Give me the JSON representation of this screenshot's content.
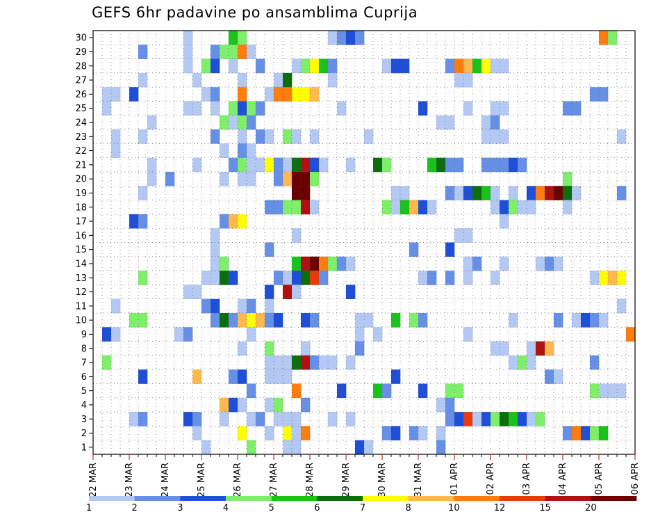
{
  "chart_data": {
    "type": "heatmap",
    "title": "GEFS 6hr padavine po ansamblima Cuprija",
    "y_labels": [
      "1",
      "2",
      "3",
      "4",
      "5",
      "6",
      "7",
      "8",
      "9",
      "10",
      "11",
      "12",
      "13",
      "14",
      "15",
      "16",
      "17",
      "18",
      "19",
      "20",
      "21",
      "22",
      "23",
      "24",
      "25",
      "26",
      "27",
      "28",
      "29",
      "30"
    ],
    "x_labels": [
      "22 MAR",
      "23 MAR",
      "24 MAR",
      "25 MAR",
      "26 MAR",
      "27 MAR",
      "28 MAR",
      "29 MAR",
      "30 MAR",
      "31 MAR",
      "01 APR",
      "02 APR",
      "03 APR",
      "04 APR",
      "05 APR",
      "06 APR"
    ],
    "time_steps": 60,
    "steps_per_day": 4,
    "legend_levels": [
      "1",
      "2",
      "3",
      "4",
      "5",
      "6",
      "7",
      "8",
      "10",
      "12",
      "15",
      "20"
    ],
    "colors": [
      "#b3c8f2",
      "#6590e6",
      "#1f4fd6",
      "#7fee6a",
      "#1cc21c",
      "#0d6e0d",
      "#ffff00",
      "#ffb84d",
      "#ff7c0f",
      "#e53b0e",
      "#b01010",
      "#6a0000"
    ],
    "cells": [
      [
        30,
        11,
        1
      ],
      [
        30,
        16,
        5
      ],
      [
        30,
        17,
        4
      ],
      [
        30,
        27,
        1
      ],
      [
        30,
        28,
        2
      ],
      [
        30,
        29,
        3
      ],
      [
        30,
        30,
        2
      ],
      [
        30,
        57,
        9
      ],
      [
        30,
        58,
        4
      ],
      [
        29,
        11,
        1
      ],
      [
        29,
        14,
        2
      ],
      [
        29,
        15,
        4
      ],
      [
        29,
        16,
        4
      ],
      [
        29,
        17,
        9
      ],
      [
        29,
        18,
        1
      ],
      [
        29,
        6,
        2
      ],
      [
        28,
        11,
        1
      ],
      [
        28,
        13,
        4
      ],
      [
        28,
        14,
        3
      ],
      [
        28,
        16,
        1
      ],
      [
        28,
        19,
        2
      ],
      [
        28,
        23,
        1
      ],
      [
        28,
        24,
        4
      ],
      [
        28,
        25,
        7
      ],
      [
        28,
        26,
        5
      ],
      [
        28,
        27,
        2
      ],
      [
        28,
        33,
        1
      ],
      [
        28,
        34,
        3
      ],
      [
        28,
        35,
        3
      ],
      [
        28,
        40,
        2
      ],
      [
        28,
        41,
        9
      ],
      [
        28,
        42,
        8
      ],
      [
        28,
        43,
        5
      ],
      [
        28,
        44,
        7
      ],
      [
        28,
        45,
        1
      ],
      [
        28,
        46,
        1
      ],
      [
        27,
        6,
        1
      ],
      [
        27,
        12,
        1
      ],
      [
        27,
        17,
        1
      ],
      [
        27,
        21,
        1
      ],
      [
        27,
        22,
        6
      ],
      [
        27,
        27,
        1
      ],
      [
        27,
        41,
        1
      ],
      [
        27,
        42,
        1
      ],
      [
        26,
        2,
        1
      ],
      [
        26,
        3,
        1
      ],
      [
        26,
        5,
        3
      ],
      [
        26,
        13,
        1
      ],
      [
        26,
        14,
        2
      ],
      [
        26,
        17,
        9
      ],
      [
        26,
        20,
        1
      ],
      [
        26,
        21,
        9
      ],
      [
        26,
        22,
        9
      ],
      [
        26,
        23,
        7
      ],
      [
        26,
        24,
        7
      ],
      [
        26,
        25,
        8
      ],
      [
        26,
        56,
        2
      ],
      [
        26,
        57,
        2
      ],
      [
        25,
        2,
        1
      ],
      [
        25,
        11,
        1
      ],
      [
        25,
        12,
        1
      ],
      [
        25,
        14,
        1
      ],
      [
        25,
        16,
        4
      ],
      [
        25,
        17,
        3
      ],
      [
        25,
        18,
        4
      ],
      [
        25,
        19,
        2
      ],
      [
        25,
        28,
        1
      ],
      [
        25,
        37,
        3
      ],
      [
        25,
        42,
        1
      ],
      [
        25,
        45,
        1
      ],
      [
        25,
        46,
        1
      ],
      [
        25,
        53,
        2
      ],
      [
        25,
        54,
        2
      ],
      [
        24,
        7,
        1
      ],
      [
        24,
        15,
        4
      ],
      [
        24,
        16,
        1
      ],
      [
        24,
        17,
        4
      ],
      [
        24,
        18,
        2
      ],
      [
        24,
        39,
        1
      ],
      [
        24,
        40,
        1
      ],
      [
        24,
        44,
        1
      ],
      [
        24,
        45,
        2
      ],
      [
        23,
        3,
        1
      ],
      [
        23,
        6,
        1
      ],
      [
        23,
        14,
        2
      ],
      [
        23,
        17,
        1
      ],
      [
        23,
        19,
        2
      ],
      [
        23,
        20,
        1
      ],
      [
        23,
        22,
        4
      ],
      [
        23,
        23,
        1
      ],
      [
        23,
        25,
        1
      ],
      [
        23,
        31,
        1
      ],
      [
        23,
        44,
        1
      ],
      [
        23,
        45,
        1
      ],
      [
        23,
        46,
        1
      ],
      [
        23,
        59,
        1
      ],
      [
        22,
        3,
        1
      ],
      [
        22,
        15,
        1
      ],
      [
        22,
        17,
        2
      ],
      [
        22,
        18,
        1
      ],
      [
        21,
        7,
        1
      ],
      [
        21,
        12,
        1
      ],
      [
        21,
        16,
        2
      ],
      [
        21,
        17,
        4
      ],
      [
        21,
        18,
        1
      ],
      [
        21,
        19,
        1
      ],
      [
        21,
        20,
        7
      ],
      [
        21,
        21,
        2
      ],
      [
        21,
        22,
        1
      ],
      [
        21,
        23,
        6
      ],
      [
        21,
        24,
        11
      ],
      [
        21,
        25,
        3
      ],
      [
        21,
        26,
        1
      ],
      [
        21,
        29,
        1
      ],
      [
        21,
        32,
        6
      ],
      [
        21,
        33,
        4
      ],
      [
        21,
        38,
        5
      ],
      [
        21,
        39,
        6
      ],
      [
        21,
        40,
        2
      ],
      [
        21,
        41,
        2
      ],
      [
        21,
        44,
        2
      ],
      [
        21,
        45,
        2
      ],
      [
        21,
        46,
        2
      ],
      [
        21,
        47,
        3
      ],
      [
        21,
        48,
        2
      ],
      [
        20,
        7,
        1
      ],
      [
        20,
        9,
        2
      ],
      [
        20,
        15,
        1
      ],
      [
        20,
        17,
        1
      ],
      [
        20,
        18,
        1
      ],
      [
        20,
        21,
        2
      ],
      [
        20,
        22,
        8
      ],
      [
        20,
        23,
        12
      ],
      [
        20,
        24,
        12
      ],
      [
        20,
        25,
        4
      ],
      [
        20,
        53,
        4
      ],
      [
        19,
        6,
        1
      ],
      [
        19,
        23,
        12
      ],
      [
        19,
        24,
        12
      ],
      [
        19,
        34,
        1
      ],
      [
        19,
        35,
        1
      ],
      [
        19,
        40,
        2
      ],
      [
        19,
        41,
        1
      ],
      [
        19,
        42,
        3
      ],
      [
        19,
        43,
        6
      ],
      [
        19,
        44,
        5
      ],
      [
        19,
        45,
        1
      ],
      [
        19,
        47,
        1
      ],
      [
        19,
        49,
        3
      ],
      [
        19,
        50,
        9
      ],
      [
        19,
        51,
        11
      ],
      [
        19,
        52,
        12
      ],
      [
        19,
        53,
        6
      ],
      [
        19,
        54,
        1
      ],
      [
        19,
        59,
        2
      ],
      [
        18,
        20,
        2
      ],
      [
        18,
        21,
        2
      ],
      [
        18,
        22,
        4
      ],
      [
        18,
        23,
        4
      ],
      [
        18,
        24,
        11
      ],
      [
        18,
        25,
        1
      ],
      [
        18,
        33,
        4
      ],
      [
        18,
        34,
        1
      ],
      [
        18,
        35,
        5
      ],
      [
        18,
        36,
        8
      ],
      [
        18,
        37,
        3
      ],
      [
        18,
        38,
        1
      ],
      [
        18,
        45,
        1
      ],
      [
        18,
        46,
        3
      ],
      [
        18,
        47,
        4
      ],
      [
        18,
        48,
        1
      ],
      [
        18,
        49,
        1
      ],
      [
        18,
        53,
        1
      ],
      [
        17,
        5,
        3
      ],
      [
        17,
        6,
        2
      ],
      [
        17,
        15,
        2
      ],
      [
        17,
        16,
        8
      ],
      [
        17,
        17,
        7
      ],
      [
        17,
        46,
        1
      ],
      [
        16,
        14,
        1
      ],
      [
        16,
        23,
        1
      ],
      [
        16,
        41,
        1
      ],
      [
        16,
        42,
        1
      ],
      [
        15,
        14,
        1
      ],
      [
        15,
        20,
        2
      ],
      [
        15,
        36,
        2
      ],
      [
        15,
        40,
        3
      ],
      [
        14,
        14,
        1
      ],
      [
        14,
        15,
        4
      ],
      [
        14,
        23,
        5
      ],
      [
        14,
        24,
        11
      ],
      [
        14,
        25,
        12
      ],
      [
        14,
        26,
        9
      ],
      [
        14,
        27,
        4
      ],
      [
        14,
        28,
        2
      ],
      [
        14,
        29,
        1
      ],
      [
        14,
        42,
        1
      ],
      [
        14,
        43,
        2
      ],
      [
        14,
        46,
        1
      ],
      [
        14,
        50,
        1
      ],
      [
        14,
        51,
        2
      ],
      [
        14,
        52,
        1
      ],
      [
        13,
        6,
        4
      ],
      [
        13,
        13,
        1
      ],
      [
        13,
        14,
        1
      ],
      [
        13,
        15,
        6
      ],
      [
        13,
        16,
        3
      ],
      [
        13,
        21,
        2
      ],
      [
        13,
        22,
        1
      ],
      [
        13,
        23,
        3
      ],
      [
        13,
        24,
        6
      ],
      [
        13,
        25,
        10
      ],
      [
        13,
        26,
        2
      ],
      [
        13,
        37,
        1
      ],
      [
        13,
        38,
        2
      ],
      [
        13,
        40,
        2
      ],
      [
        13,
        42,
        1
      ],
      [
        13,
        45,
        1
      ],
      [
        13,
        56,
        1
      ],
      [
        13,
        57,
        7
      ],
      [
        13,
        58,
        8
      ],
      [
        13,
        59,
        7
      ],
      [
        12,
        11,
        1
      ],
      [
        12,
        12,
        1
      ],
      [
        12,
        20,
        3
      ],
      [
        12,
        22,
        11
      ],
      [
        12,
        23,
        1
      ],
      [
        12,
        29,
        3
      ],
      [
        11,
        3,
        1
      ],
      [
        11,
        13,
        2
      ],
      [
        11,
        14,
        3
      ],
      [
        11,
        17,
        1
      ],
      [
        11,
        18,
        2
      ],
      [
        11,
        20,
        1
      ],
      [
        11,
        59,
        1
      ],
      [
        10,
        5,
        4
      ],
      [
        10,
        6,
        4
      ],
      [
        10,
        14,
        2
      ],
      [
        10,
        15,
        6
      ],
      [
        10,
        16,
        2
      ],
      [
        10,
        17,
        8
      ],
      [
        10,
        18,
        7
      ],
      [
        10,
        19,
        8
      ],
      [
        10,
        20,
        2
      ],
      [
        10,
        21,
        3
      ],
      [
        10,
        24,
        3
      ],
      [
        10,
        25,
        2
      ],
      [
        10,
        30,
        1
      ],
      [
        10,
        31,
        1
      ],
      [
        10,
        34,
        5
      ],
      [
        10,
        36,
        4
      ],
      [
        10,
        37,
        2
      ],
      [
        10,
        47,
        1
      ],
      [
        10,
        52,
        2
      ],
      [
        10,
        54,
        1
      ],
      [
        10,
        55,
        3
      ],
      [
        10,
        56,
        2
      ],
      [
        10,
        57,
        1
      ],
      [
        9,
        2,
        3
      ],
      [
        9,
        3,
        1
      ],
      [
        9,
        10,
        1
      ],
      [
        9,
        11,
        2
      ],
      [
        9,
        18,
        1
      ],
      [
        9,
        30,
        1
      ],
      [
        9,
        32,
        1
      ],
      [
        9,
        42,
        1
      ],
      [
        9,
        60,
        9
      ],
      [
        8,
        17,
        1
      ],
      [
        8,
        20,
        4
      ],
      [
        8,
        24,
        1
      ],
      [
        8,
        30,
        2
      ],
      [
        8,
        45,
        1
      ],
      [
        8,
        46,
        1
      ],
      [
        8,
        49,
        1
      ],
      [
        8,
        50,
        11
      ],
      [
        8,
        51,
        8
      ],
      [
        7,
        2,
        4
      ],
      [
        7,
        20,
        1
      ],
      [
        7,
        21,
        1
      ],
      [
        7,
        22,
        1
      ],
      [
        7,
        23,
        6
      ],
      [
        7,
        24,
        11
      ],
      [
        7,
        25,
        2
      ],
      [
        7,
        26,
        1
      ],
      [
        7,
        27,
        1
      ],
      [
        7,
        29,
        1
      ],
      [
        7,
        47,
        1
      ],
      [
        7,
        48,
        4
      ],
      [
        7,
        49,
        1
      ],
      [
        7,
        56,
        2
      ],
      [
        6,
        6,
        3
      ],
      [
        6,
        12,
        8
      ],
      [
        6,
        16,
        2
      ],
      [
        6,
        17,
        3
      ],
      [
        6,
        20,
        1
      ],
      [
        6,
        21,
        1
      ],
      [
        6,
        22,
        1
      ],
      [
        6,
        34,
        3
      ],
      [
        6,
        51,
        2
      ],
      [
        6,
        52,
        1
      ],
      [
        5,
        18,
        2
      ],
      [
        5,
        23,
        9
      ],
      [
        5,
        28,
        3
      ],
      [
        5,
        32,
        5
      ],
      [
        5,
        33,
        2
      ],
      [
        5,
        37,
        3
      ],
      [
        5,
        40,
        4
      ],
      [
        5,
        41,
        4
      ],
      [
        5,
        56,
        4
      ],
      [
        5,
        57,
        1
      ],
      [
        5,
        58,
        1
      ],
      [
        5,
        59,
        1
      ],
      [
        4,
        15,
        8
      ],
      [
        4,
        16,
        3
      ],
      [
        4,
        17,
        1
      ],
      [
        4,
        20,
        1
      ],
      [
        4,
        21,
        4
      ],
      [
        4,
        24,
        2
      ],
      [
        4,
        39,
        1
      ],
      [
        4,
        40,
        2
      ],
      [
        3,
        5,
        1
      ],
      [
        3,
        6,
        2
      ],
      [
        3,
        11,
        3
      ],
      [
        3,
        12,
        2
      ],
      [
        3,
        15,
        1
      ],
      [
        3,
        18,
        1
      ],
      [
        3,
        19,
        2
      ],
      [
        3,
        21,
        1
      ],
      [
        3,
        22,
        1
      ],
      [
        3,
        23,
        1
      ],
      [
        3,
        27,
        1
      ],
      [
        3,
        29,
        1
      ],
      [
        3,
        40,
        2
      ],
      [
        3,
        41,
        3
      ],
      [
        3,
        42,
        10
      ],
      [
        3,
        43,
        1
      ],
      [
        3,
        44,
        3
      ],
      [
        3,
        45,
        4
      ],
      [
        3,
        46,
        6
      ],
      [
        3,
        47,
        5
      ],
      [
        3,
        48,
        3
      ],
      [
        3,
        49,
        1
      ],
      [
        3,
        50,
        4
      ],
      [
        2,
        12,
        1
      ],
      [
        2,
        17,
        7
      ],
      [
        2,
        20,
        1
      ],
      [
        2,
        22,
        7
      ],
      [
        2,
        23,
        1
      ],
      [
        2,
        24,
        9
      ],
      [
        2,
        33,
        2
      ],
      [
        2,
        34,
        3
      ],
      [
        2,
        36,
        2
      ],
      [
        2,
        37,
        1
      ],
      [
        2,
        39,
        1
      ],
      [
        2,
        53,
        2
      ],
      [
        2,
        54,
        9
      ],
      [
        2,
        55,
        3
      ],
      [
        2,
        56,
        4
      ],
      [
        2,
        57,
        5
      ],
      [
        1,
        13,
        1
      ],
      [
        1,
        18,
        4
      ],
      [
        1,
        22,
        1
      ],
      [
        1,
        23,
        1
      ],
      [
        1,
        30,
        3
      ],
      [
        1,
        31,
        1
      ],
      [
        1,
        39,
        2
      ]
    ]
  }
}
